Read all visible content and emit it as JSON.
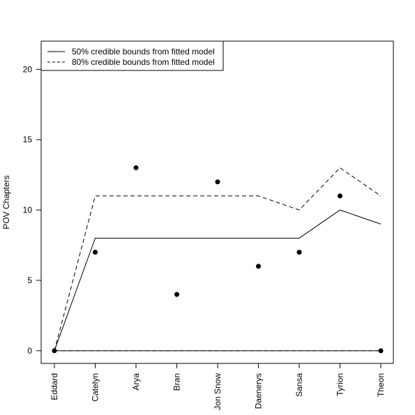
{
  "chart_data": {
    "type": "line",
    "title": "",
    "xlabel": "",
    "ylabel": "POV Chapters",
    "categories": [
      "Eddard",
      "Catelyn",
      "Arya",
      "Bran",
      "Jon Snow",
      "Daenerys",
      "Sansa",
      "Tyrion",
      "Theon"
    ],
    "ylim": [
      -0.9,
      22
    ],
    "yticks": [
      0,
      5,
      10,
      15,
      20
    ],
    "grid": false,
    "legend_position": "top-left",
    "points": {
      "name": "",
      "values": [
        0,
        7,
        13,
        4,
        12,
        6,
        7,
        11,
        0
      ]
    },
    "series": [
      {
        "name": "50% credible bounds from fitted model",
        "style": "solid",
        "upper": [
          0,
          8,
          8,
          8,
          8,
          8,
          8,
          10,
          9
        ],
        "lower": [
          0,
          0,
          0,
          0,
          0,
          0,
          0,
          0,
          0
        ]
      },
      {
        "name": "80% credible bounds from fitted model",
        "style": "dashed",
        "upper": [
          0,
          11,
          11,
          11,
          11,
          11,
          10,
          13,
          11
        ],
        "lower": [
          0,
          0,
          0,
          0,
          0,
          0,
          0,
          0,
          0
        ]
      }
    ]
  }
}
